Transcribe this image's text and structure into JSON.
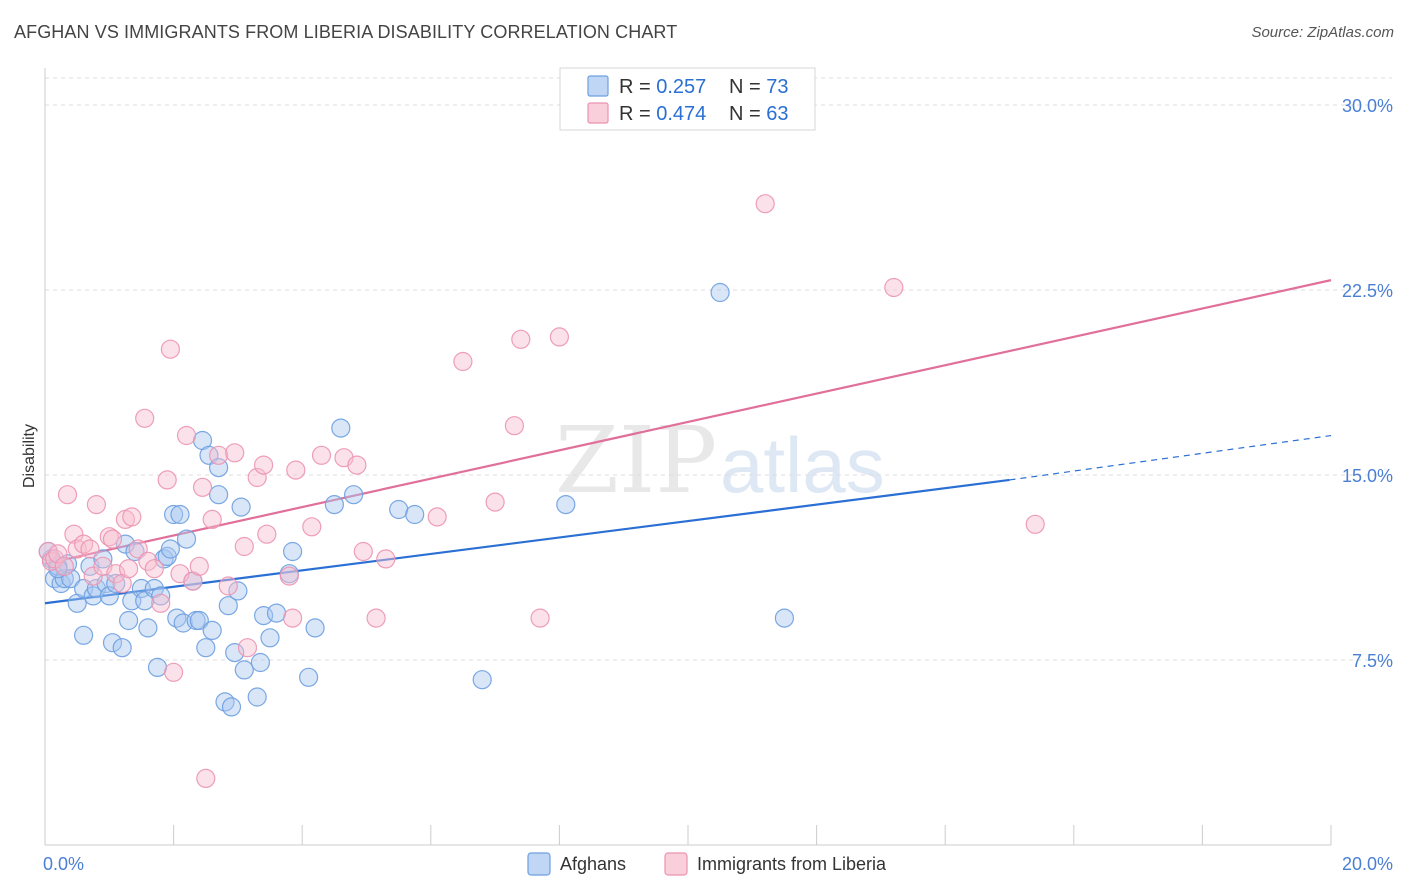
{
  "header": {
    "title": "AFGHAN VS IMMIGRANTS FROM LIBERIA DISABILITY CORRELATION CHART",
    "source": "Source: ZipAtlas.com"
  },
  "watermark": {
    "part1": "ZIP",
    "part2": "atlas"
  },
  "legend_top": {
    "rows": [
      {
        "r_label": "R = ",
        "r_value": "0.257",
        "n_label": "N = ",
        "n_value": "73"
      },
      {
        "r_label": "R = ",
        "r_value": "0.474",
        "n_label": "N = ",
        "n_value": "63"
      }
    ]
  },
  "legend_bottom": {
    "items": [
      "Afghans",
      "Immigrants from Liberia"
    ]
  },
  "colors": {
    "afghans_fill": "#a9c8f0",
    "afghans_stroke": "#6d9fe0",
    "afghans_line": "#2a6fd4",
    "liberia_fill": "#f7bfd0",
    "liberia_stroke": "#ec93b0",
    "liberia_line": "#e0709a",
    "tick_text": "#4a7fd4",
    "grid": "#dddddd",
    "value_text": "#2a6fd4"
  },
  "chart_data": {
    "type": "scatter",
    "title": "AFGHAN VS IMMIGRANTS FROM LIBERIA DISABILITY CORRELATION CHART",
    "xlabel": "",
    "ylabel": "Disability",
    "xlim": [
      0,
      20
    ],
    "ylim": [
      0,
      31.5
    ],
    "x_tick_labels": [
      {
        "value": 0,
        "label": "0.0%"
      },
      {
        "value": 20,
        "label": "20.0%"
      }
    ],
    "y_ticks": [
      {
        "value": 7.5,
        "label": "7.5%"
      },
      {
        "value": 15.0,
        "label": "15.0%"
      },
      {
        "value": 22.5,
        "label": "22.5%"
      },
      {
        "value": 30.0,
        "label": "30.0%"
      }
    ],
    "series": [
      {
        "name": "Afghans",
        "r": 0.257,
        "n": 73,
        "trend": {
          "x0": 0,
          "y0": 9.8,
          "x_solid_end": 15.0,
          "y_solid_end": 14.8,
          "x1": 20,
          "y1": 16.6
        },
        "points": [
          [
            0.1,
            11.6
          ],
          [
            0.15,
            10.8
          ],
          [
            0.2,
            11.3
          ],
          [
            0.25,
            10.6
          ],
          [
            0.3,
            10.8
          ],
          [
            0.35,
            11.4
          ],
          [
            0.4,
            10.8
          ],
          [
            0.5,
            9.8
          ],
          [
            0.6,
            10.4
          ],
          [
            0.6,
            8.5
          ],
          [
            0.7,
            11.3
          ],
          [
            0.75,
            10.1
          ],
          [
            0.8,
            10.4
          ],
          [
            0.9,
            11.6
          ],
          [
            0.95,
            10.6
          ],
          [
            1.0,
            10.1
          ],
          [
            1.05,
            8.2
          ],
          [
            1.1,
            10.6
          ],
          [
            1.2,
            8.0
          ],
          [
            1.25,
            12.2
          ],
          [
            1.3,
            9.1
          ],
          [
            1.35,
            9.9
          ],
          [
            1.4,
            11.9
          ],
          [
            1.5,
            10.4
          ],
          [
            1.55,
            9.9
          ],
          [
            1.6,
            8.8
          ],
          [
            1.7,
            10.4
          ],
          [
            1.75,
            7.2
          ],
          [
            1.8,
            10.1
          ],
          [
            1.85,
            11.6
          ],
          [
            1.9,
            11.7
          ],
          [
            1.95,
            12.0
          ],
          [
            2.0,
            13.4
          ],
          [
            2.05,
            9.2
          ],
          [
            2.1,
            13.4
          ],
          [
            2.15,
            9.0
          ],
          [
            2.2,
            12.4
          ],
          [
            2.3,
            10.7
          ],
          [
            2.35,
            9.1
          ],
          [
            2.4,
            9.1
          ],
          [
            2.45,
            16.4
          ],
          [
            2.5,
            8.0
          ],
          [
            2.55,
            15.8
          ],
          [
            2.6,
            8.7
          ],
          [
            2.7,
            14.2
          ],
          [
            2.7,
            15.3
          ],
          [
            2.8,
            5.8
          ],
          [
            2.85,
            9.7
          ],
          [
            2.9,
            5.6
          ],
          [
            2.95,
            7.8
          ],
          [
            3.0,
            10.3
          ],
          [
            3.05,
            13.7
          ],
          [
            3.1,
            7.1
          ],
          [
            3.3,
            6.0
          ],
          [
            3.35,
            7.4
          ],
          [
            3.4,
            9.3
          ],
          [
            3.5,
            8.4
          ],
          [
            3.6,
            9.4
          ],
          [
            3.8,
            11.0
          ],
          [
            3.85,
            11.9
          ],
          [
            4.1,
            6.8
          ],
          [
            4.2,
            8.8
          ],
          [
            4.5,
            13.8
          ],
          [
            4.6,
            16.9
          ],
          [
            4.8,
            14.2
          ],
          [
            5.5,
            13.6
          ],
          [
            5.75,
            13.4
          ],
          [
            6.8,
            6.7
          ],
          [
            8.1,
            13.8
          ],
          [
            10.5,
            22.4
          ],
          [
            11.5,
            9.2
          ],
          [
            0.2,
            11.2
          ],
          [
            0.05,
            11.9
          ]
        ]
      },
      {
        "name": "Immigrants from Liberia",
        "r": 0.474,
        "n": 63,
        "trend": {
          "x0": 0,
          "y0": 11.4,
          "x1": 20,
          "y1": 22.9
        },
        "points": [
          [
            0.05,
            11.9
          ],
          [
            0.1,
            11.5
          ],
          [
            0.15,
            11.6
          ],
          [
            0.2,
            11.8
          ],
          [
            0.3,
            11.3
          ],
          [
            0.35,
            14.2
          ],
          [
            0.45,
            12.6
          ],
          [
            0.5,
            12.0
          ],
          [
            0.6,
            12.2
          ],
          [
            0.7,
            12.0
          ],
          [
            0.75,
            10.9
          ],
          [
            0.8,
            13.8
          ],
          [
            0.9,
            11.3
          ],
          [
            1.0,
            12.5
          ],
          [
            1.05,
            12.4
          ],
          [
            1.1,
            11.0
          ],
          [
            1.2,
            10.6
          ],
          [
            1.25,
            13.2
          ],
          [
            1.3,
            11.2
          ],
          [
            1.35,
            13.3
          ],
          [
            1.45,
            12.0
          ],
          [
            1.55,
            17.3
          ],
          [
            1.6,
            11.5
          ],
          [
            1.7,
            11.2
          ],
          [
            1.8,
            9.8
          ],
          [
            1.9,
            14.8
          ],
          [
            1.95,
            20.1
          ],
          [
            2.0,
            7.0
          ],
          [
            2.1,
            11.0
          ],
          [
            2.2,
            16.6
          ],
          [
            2.3,
            10.7
          ],
          [
            2.4,
            11.3
          ],
          [
            2.45,
            14.5
          ],
          [
            2.5,
            2.7
          ],
          [
            2.6,
            13.2
          ],
          [
            2.7,
            15.8
          ],
          [
            2.85,
            10.5
          ],
          [
            2.95,
            15.9
          ],
          [
            3.1,
            12.1
          ],
          [
            3.15,
            8.0
          ],
          [
            3.3,
            14.9
          ],
          [
            3.4,
            15.4
          ],
          [
            3.45,
            12.6
          ],
          [
            3.8,
            10.9
          ],
          [
            3.85,
            9.2
          ],
          [
            3.9,
            15.2
          ],
          [
            4.15,
            12.9
          ],
          [
            4.3,
            15.8
          ],
          [
            4.65,
            15.7
          ],
          [
            4.85,
            15.4
          ],
          [
            4.95,
            11.9
          ],
          [
            5.15,
            9.2
          ],
          [
            5.3,
            11.6
          ],
          [
            6.1,
            13.3
          ],
          [
            6.5,
            19.6
          ],
          [
            7.0,
            13.9
          ],
          [
            7.3,
            17.0
          ],
          [
            7.4,
            20.5
          ],
          [
            7.7,
            9.2
          ],
          [
            8.0,
            20.6
          ],
          [
            11.2,
            26.0
          ],
          [
            13.2,
            22.6
          ],
          [
            15.4,
            13.0
          ]
        ]
      }
    ]
  }
}
